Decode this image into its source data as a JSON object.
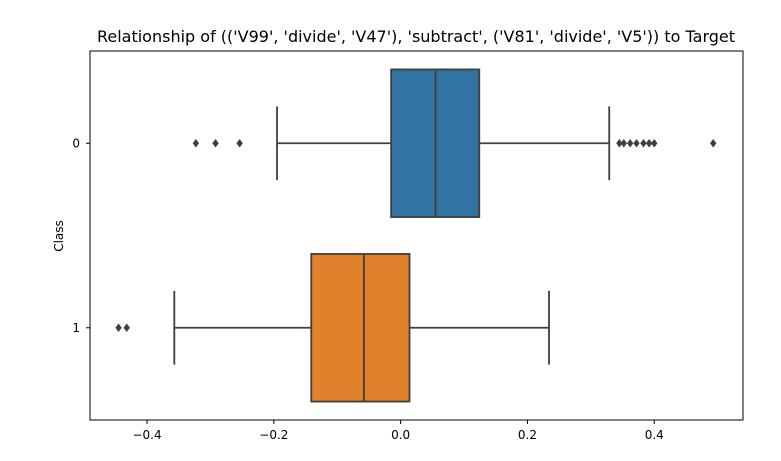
{
  "chart_data": {
    "type": "boxplot",
    "orientation": "horizontal",
    "title": "Relationship of (('V99', 'divide', 'V47'), 'subtract', ('V81', 'divide', 'V5')) to Target",
    "xlabel": "",
    "ylabel": "Class",
    "xlim": [
      -0.49,
      0.54
    ],
    "x_ticks": [
      -0.4,
      -0.2,
      0.0,
      0.2,
      0.4
    ],
    "x_tick_labels": [
      "−0.4",
      "−0.2",
      "0.0",
      "0.2",
      "0.4"
    ],
    "categories": [
      "0",
      "1"
    ],
    "grid": false,
    "series": [
      {
        "category": "0",
        "color": "#3274a1",
        "whisker_low": -0.195,
        "q1": -0.015,
        "median": 0.055,
        "q3": 0.124,
        "whisker_high": 0.329,
        "outliers": [
          -0.323,
          -0.292,
          -0.254,
          0.345,
          0.352,
          0.362,
          0.372,
          0.383,
          0.392,
          0.4,
          0.493
        ]
      },
      {
        "category": "1",
        "color": "#e1812c",
        "whisker_low": -0.357,
        "q1": -0.141,
        "median": -0.058,
        "q3": 0.014,
        "whisker_high": 0.234,
        "outliers": [
          -0.445,
          -0.432
        ]
      }
    ]
  }
}
